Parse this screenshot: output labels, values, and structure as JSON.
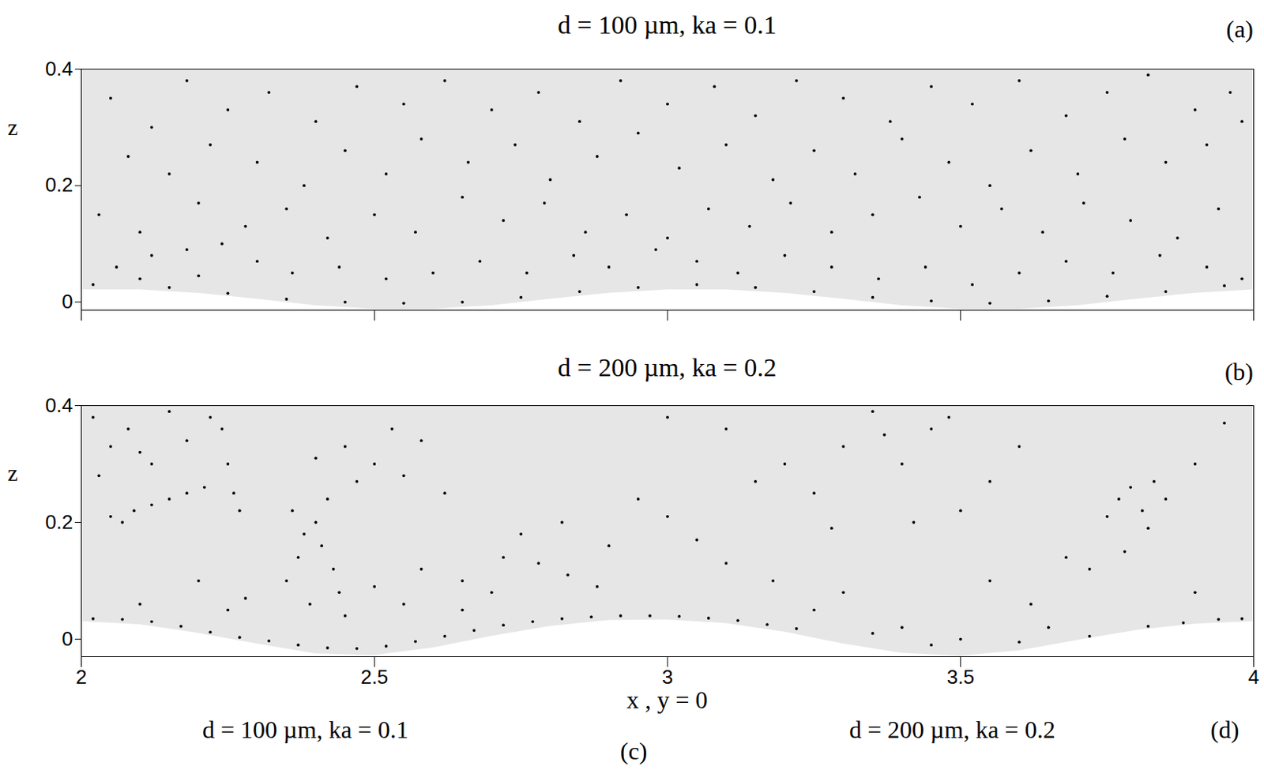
{
  "chart_data": [
    {
      "type": "scatter",
      "title": "d = 100 µm, ka = 0.1",
      "panel": "(a)",
      "ylabel": "z",
      "xlim": [
        2,
        4
      ],
      "ylim": [
        -0.014,
        0.4
      ],
      "xticks": [
        2,
        2.5,
        3,
        3.5,
        4
      ],
      "yticks": [
        0,
        0.2,
        0.4
      ],
      "tick_labels": "y",
      "color": "#000000",
      "x": [
        2.05,
        2.12,
        2.18,
        2.25,
        2.32,
        2.4,
        2.47,
        2.55,
        2.62,
        2.7,
        2.78,
        2.85,
        2.92,
        3.0,
        3.08,
        3.15,
        3.22,
        3.3,
        3.38,
        3.45,
        3.52,
        3.6,
        3.68,
        3.75,
        3.82,
        3.9,
        3.96,
        2.08,
        2.15,
        2.22,
        2.3,
        2.38,
        2.45,
        2.52,
        2.58,
        2.66,
        2.74,
        2.8,
        2.88,
        2.95,
        3.02,
        3.1,
        3.18,
        3.25,
        3.32,
        3.4,
        3.48,
        3.55,
        3.62,
        3.7,
        3.78,
        3.85,
        3.92,
        3.98,
        2.03,
        2.1,
        2.2,
        2.28,
        2.35,
        2.42,
        2.5,
        2.57,
        2.65,
        2.72,
        2.79,
        2.86,
        2.93,
        3.0,
        3.07,
        3.14,
        3.21,
        3.28,
        3.35,
        3.43,
        3.5,
        3.57,
        3.64,
        3.71,
        3.79,
        3.87,
        3.94,
        2.06,
        2.12,
        2.18,
        2.24,
        2.3,
        2.36,
        2.44,
        2.52,
        2.6,
        2.68,
        2.76,
        2.84,
        2.9,
        2.98,
        3.05,
        3.12,
        3.2,
        3.28,
        3.36,
        3.44,
        3.52,
        3.6,
        3.68,
        3.76,
        3.84,
        3.92,
        3.98,
        2.02,
        2.1,
        2.15,
        2.25,
        2.35,
        2.45,
        2.55,
        2.65,
        2.75,
        2.85,
        2.95,
        3.05,
        3.15,
        3.25,
        3.35,
        3.45,
        3.55,
        3.65,
        3.75,
        3.85,
        3.95,
        2.2
      ],
      "y": [
        0.35,
        0.3,
        0.38,
        0.33,
        0.36,
        0.31,
        0.37,
        0.34,
        0.38,
        0.33,
        0.36,
        0.31,
        0.38,
        0.34,
        0.37,
        0.32,
        0.38,
        0.35,
        0.31,
        0.37,
        0.34,
        0.38,
        0.32,
        0.36,
        0.39,
        0.33,
        0.36,
        0.25,
        0.22,
        0.27,
        0.24,
        0.2,
        0.26,
        0.22,
        0.28,
        0.24,
        0.27,
        0.21,
        0.25,
        0.29,
        0.23,
        0.27,
        0.21,
        0.26,
        0.22,
        0.28,
        0.24,
        0.2,
        0.26,
        0.22,
        0.28,
        0.24,
        0.27,
        0.31,
        0.15,
        0.12,
        0.17,
        0.13,
        0.16,
        0.11,
        0.15,
        0.12,
        0.18,
        0.14,
        0.17,
        0.12,
        0.15,
        0.11,
        0.16,
        0.13,
        0.17,
        0.12,
        0.15,
        0.18,
        0.13,
        0.16,
        0.12,
        0.17,
        0.14,
        0.11,
        0.16,
        0.06,
        0.08,
        0.09,
        0.1,
        0.07,
        0.05,
        0.06,
        0.04,
        0.05,
        0.07,
        0.05,
        0.08,
        0.06,
        0.09,
        0.07,
        0.05,
        0.08,
        0.06,
        0.04,
        0.06,
        0.03,
        0.05,
        0.07,
        0.05,
        0.08,
        0.06,
        0.04,
        0.03,
        0.04,
        0.025,
        0.015,
        0.005,
        0,
        -0.002,
        0,
        0.008,
        0.018,
        0.025,
        0.03,
        0.025,
        0.018,
        0.008,
        0.002,
        -0.002,
        0.002,
        0.01,
        0.018,
        0.028,
        0.045
      ],
      "surface": {
        "x": [
          2.0,
          2.1,
          2.2,
          2.3,
          2.4,
          2.5,
          2.6,
          2.7,
          2.8,
          2.9,
          3.0,
          3.1,
          3.2,
          3.3,
          3.4,
          3.5,
          3.6,
          3.7,
          3.8,
          3.9,
          4.0
        ],
        "z": [
          0.021,
          0.021,
          0.015,
          0.005,
          -0.006,
          -0.012,
          -0.012,
          -0.006,
          0.005,
          0.015,
          0.021,
          0.021,
          0.015,
          0.005,
          -0.006,
          -0.012,
          -0.012,
          -0.006,
          0.005,
          0.015,
          0.021
        ]
      }
    },
    {
      "type": "scatter",
      "title": "d = 200 µm, ka = 0.2",
      "panel": "(b)",
      "ylabel": "z",
      "xlabel": "x , y = 0",
      "xlim": [
        2,
        4
      ],
      "ylim": [
        -0.03,
        0.4
      ],
      "xticks": [
        2,
        2.5,
        3,
        3.5,
        4
      ],
      "yticks": [
        0,
        0.2,
        0.4
      ],
      "color": "#000000",
      "annotations": [
        "d = 100 µm, ka = 0.1",
        "(c)",
        "d = 200 µm, ka = 0.2",
        "(d)"
      ],
      "x": [
        2.02,
        2.05,
        2.08,
        2.12,
        2.15,
        2.18,
        2.22,
        2.24,
        2.03,
        2.1,
        2.05,
        2.09,
        2.12,
        2.15,
        2.18,
        2.21,
        2.07,
        2.25,
        2.26,
        2.27,
        2.35,
        2.37,
        2.38,
        2.4,
        2.41,
        2.43,
        2.36,
        2.44,
        2.39,
        2.42,
        2.4,
        2.45,
        2.5,
        2.55,
        2.58,
        2.47,
        2.53,
        2.62,
        2.2,
        2.28,
        2.5,
        2.58,
        2.65,
        2.72,
        2.78,
        2.83,
        2.88,
        2.75,
        2.82,
        2.9,
        2.95,
        3.0,
        3.05,
        3.1,
        3.15,
        3.2,
        3.25,
        3.1,
        3.0,
        3.3,
        3.35,
        3.37,
        3.4,
        3.45,
        3.48,
        3.5,
        3.55,
        3.6,
        3.42,
        3.28,
        3.75,
        3.77,
        3.79,
        3.81,
        3.83,
        3.85,
        3.82,
        3.78,
        3.72,
        3.9,
        3.55,
        3.62,
        3.68,
        3.9,
        3.95,
        3.3,
        3.25,
        3.18,
        3.4,
        3.5,
        2.02,
        2.07,
        2.12,
        2.17,
        2.22,
        2.27,
        2.32,
        2.37,
        2.42,
        2.47,
        2.52,
        2.57,
        2.62,
        2.67,
        2.72,
        2.77,
        2.82,
        2.87,
        2.92,
        2.97,
        3.02,
        3.07,
        3.12,
        3.17,
        3.22,
        3.72,
        3.82,
        3.88,
        3.94,
        3.98,
        2.1,
        2.25,
        2.45,
        2.55,
        2.65,
        2.7,
        3.45,
        3.6,
        3.35,
        3.65
      ],
      "y": [
        0.38,
        0.33,
        0.36,
        0.3,
        0.39,
        0.34,
        0.38,
        0.36,
        0.28,
        0.32,
        0.21,
        0.22,
        0.23,
        0.24,
        0.25,
        0.26,
        0.2,
        0.3,
        0.25,
        0.22,
        0.1,
        0.14,
        0.18,
        0.2,
        0.16,
        0.12,
        0.22,
        0.08,
        0.06,
        0.24,
        0.31,
        0.33,
        0.3,
        0.28,
        0.34,
        0.27,
        0.36,
        0.25,
        0.1,
        0.07,
        0.09,
        0.12,
        0.1,
        0.14,
        0.13,
        0.11,
        0.09,
        0.18,
        0.2,
        0.16,
        0.24,
        0.21,
        0.17,
        0.13,
        0.27,
        0.3,
        0.25,
        0.36,
        0.38,
        0.33,
        0.39,
        0.35,
        0.3,
        0.36,
        0.38,
        0.22,
        0.27,
        0.33,
        0.2,
        0.19,
        0.21,
        0.24,
        0.26,
        0.22,
        0.27,
        0.24,
        0.19,
        0.15,
        0.12,
        0.3,
        0.1,
        0.06,
        0.14,
        0.08,
        0.37,
        0.08,
        0.05,
        0.1,
        0.02,
        0.0,
        0.035,
        0.034,
        0.03,
        0.022,
        0.012,
        0.003,
        -0.003,
        -0.01,
        -0.015,
        -0.016,
        -0.012,
        -0.004,
        0.005,
        0.015,
        0.024,
        0.03,
        0.035,
        0.038,
        0.04,
        0.04,
        0.039,
        0.036,
        0.032,
        0.025,
        0.018,
        0.005,
        0.022,
        0.028,
        0.034,
        0.035,
        0.06,
        0.05,
        0.04,
        0.06,
        0.05,
        0.08,
        -0.01,
        -0.005,
        0.01,
        0.02
      ],
      "surface": {
        "x": [
          2.0,
          2.1,
          2.2,
          2.3,
          2.4,
          2.5,
          2.6,
          2.7,
          2.8,
          2.9,
          3.0,
          3.1,
          3.2,
          3.3,
          3.4,
          3.5,
          3.6,
          3.7,
          3.8,
          3.9,
          4.0
        ],
        "z": [
          0.03,
          0.025,
          0.01,
          -0.008,
          -0.025,
          -0.028,
          -0.015,
          0.005,
          0.022,
          0.032,
          0.033,
          0.027,
          0.012,
          -0.008,
          -0.024,
          -0.029,
          -0.02,
          -0.002,
          0.015,
          0.026,
          0.03
        ]
      }
    }
  ]
}
